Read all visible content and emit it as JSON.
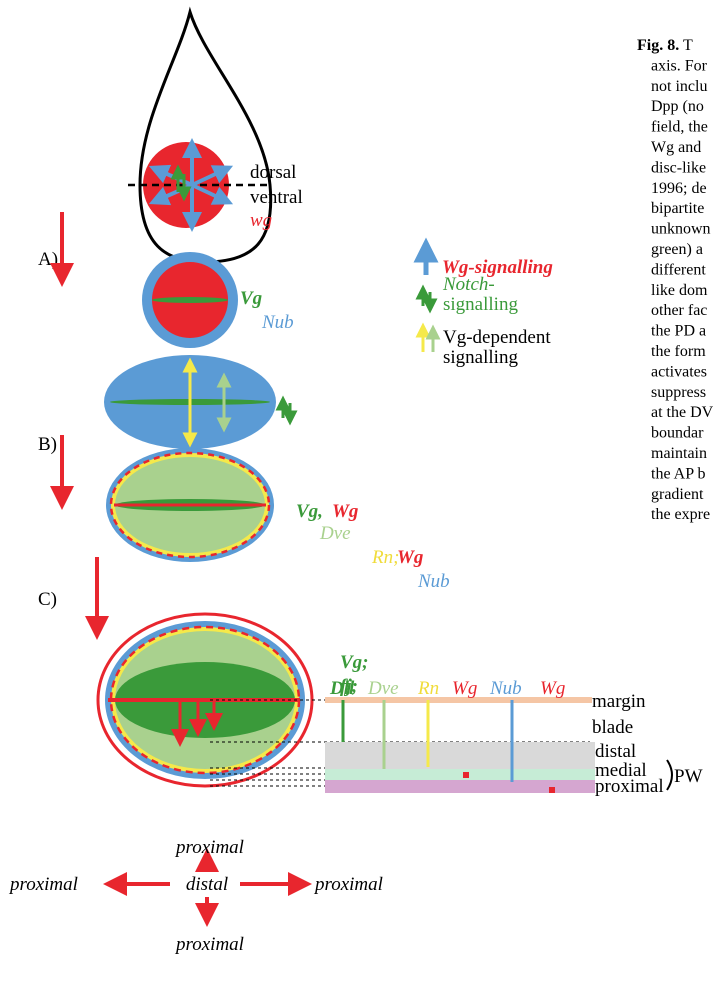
{
  "caption": {
    "label": "Fig. 8.",
    "lines": [
      "T",
      "axis. For",
      "not inclu",
      "Dpp (no",
      "field, the",
      "Wg and",
      "disc-like",
      "1996; de",
      "bipartite",
      "unknown",
      "green) a",
      "different",
      "like dom",
      "other fac",
      "the PD a",
      "the form",
      "activates",
      "suppress",
      "at the DV",
      "boundar",
      "maintain",
      "the AP b",
      "gradient",
      "the expre"
    ]
  },
  "stage_a": {
    "panel": "A)",
    "dorsal": "dorsal",
    "ventral": "ventral",
    "wg": "wg",
    "vg": "Vg",
    "nub": "Nub"
  },
  "legend": {
    "wg_signalling": "Wg-signalling",
    "notch_1": "Notch-",
    "notch_2": "signalling",
    "vg_1": "Vg-dependent",
    "vg_2": "signalling"
  },
  "stage_b": {
    "panel": "B)",
    "vg": "Vg,",
    "wg": "Wg",
    "dve": "Dve",
    "rn": "Rn;",
    "wg2": "Wg",
    "nub": "Nub"
  },
  "stage_c": {
    "panel": "C)",
    "vg": "Vg;",
    "fj": "fj;",
    "genes": [
      "Dll",
      "Dve",
      "Rn",
      "Wg",
      "Nub",
      "Wg"
    ],
    "margin": "margin",
    "blade": "blade",
    "distal": "distal",
    "medial": "medial",
    "proximal": "proximal",
    "pw": "PW"
  },
  "compass": {
    "top": "proximal",
    "left": "proximal",
    "center": "distal",
    "right": "proximal",
    "bottom": "proximal"
  }
}
